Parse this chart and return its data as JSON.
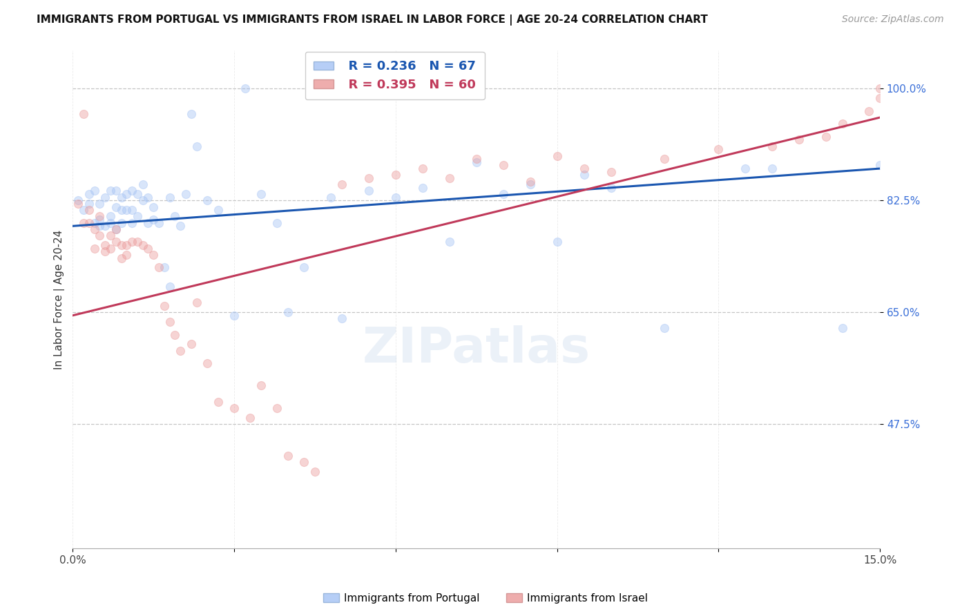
{
  "title": "IMMIGRANTS FROM PORTUGAL VS IMMIGRANTS FROM ISRAEL IN LABOR FORCE | AGE 20-24 CORRELATION CHART",
  "source": "Source: ZipAtlas.com",
  "ylabel": "In Labor Force | Age 20-24",
  "xlim": [
    0.0,
    0.15
  ],
  "ylim": [
    0.28,
    1.06
  ],
  "xticks": [
    0.0,
    0.03,
    0.06,
    0.09,
    0.12,
    0.15
  ],
  "xtick_labels": [
    "0.0%",
    "",
    "",
    "",
    "",
    "15.0%"
  ],
  "yticks": [
    0.475,
    0.65,
    0.825,
    1.0
  ],
  "ytick_labels": [
    "47.5%",
    "65.0%",
    "82.5%",
    "100.0%"
  ],
  "legend_blue_r": "R = 0.236",
  "legend_blue_n": "N = 67",
  "legend_pink_r": "R = 0.395",
  "legend_pink_n": "N = 60",
  "blue_color": "#a4c2f4",
  "pink_color": "#ea9999",
  "blue_line_color": "#1a56b0",
  "pink_line_color": "#c0395a",
  "watermark": "ZIPatlas",
  "blue_line_x0": 0.0,
  "blue_line_y0": 0.785,
  "blue_line_x1": 0.15,
  "blue_line_y1": 0.875,
  "pink_line_x0": 0.0,
  "pink_line_y0": 0.645,
  "pink_line_x1": 0.15,
  "pink_line_y1": 0.955,
  "blue_x": [
    0.001,
    0.002,
    0.003,
    0.003,
    0.004,
    0.004,
    0.005,
    0.005,
    0.005,
    0.006,
    0.006,
    0.007,
    0.007,
    0.007,
    0.008,
    0.008,
    0.008,
    0.009,
    0.009,
    0.009,
    0.01,
    0.01,
    0.011,
    0.011,
    0.011,
    0.012,
    0.012,
    0.013,
    0.013,
    0.014,
    0.014,
    0.015,
    0.015,
    0.016,
    0.017,
    0.018,
    0.018,
    0.019,
    0.02,
    0.021,
    0.022,
    0.023,
    0.025,
    0.027,
    0.03,
    0.032,
    0.035,
    0.038,
    0.04,
    0.043,
    0.048,
    0.05,
    0.055,
    0.06,
    0.065,
    0.07,
    0.075,
    0.08,
    0.085,
    0.09,
    0.095,
    0.1,
    0.11,
    0.125,
    0.13,
    0.143,
    0.15
  ],
  "blue_y": [
    0.825,
    0.81,
    0.82,
    0.835,
    0.79,
    0.84,
    0.785,
    0.82,
    0.795,
    0.83,
    0.785,
    0.8,
    0.84,
    0.79,
    0.815,
    0.84,
    0.78,
    0.83,
    0.81,
    0.79,
    0.835,
    0.81,
    0.84,
    0.81,
    0.79,
    0.835,
    0.8,
    0.825,
    0.85,
    0.79,
    0.83,
    0.815,
    0.795,
    0.79,
    0.72,
    0.69,
    0.83,
    0.8,
    0.785,
    0.835,
    0.96,
    0.91,
    0.825,
    0.81,
    0.645,
    1.0,
    0.835,
    0.79,
    0.65,
    0.72,
    0.83,
    0.64,
    0.84,
    0.83,
    0.845,
    0.76,
    0.885,
    0.835,
    0.85,
    0.76,
    0.865,
    0.845,
    0.625,
    0.875,
    0.875,
    0.625,
    0.88
  ],
  "pink_x": [
    0.001,
    0.002,
    0.002,
    0.003,
    0.003,
    0.004,
    0.004,
    0.005,
    0.005,
    0.006,
    0.006,
    0.007,
    0.007,
    0.008,
    0.008,
    0.009,
    0.009,
    0.01,
    0.01,
    0.011,
    0.012,
    0.013,
    0.014,
    0.015,
    0.016,
    0.017,
    0.018,
    0.019,
    0.02,
    0.022,
    0.023,
    0.025,
    0.027,
    0.03,
    0.033,
    0.035,
    0.038,
    0.04,
    0.043,
    0.045,
    0.05,
    0.055,
    0.06,
    0.065,
    0.07,
    0.075,
    0.08,
    0.085,
    0.09,
    0.095,
    0.1,
    0.11,
    0.12,
    0.13,
    0.135,
    0.14,
    0.143,
    0.148,
    0.15,
    0.15
  ],
  "pink_y": [
    0.82,
    0.96,
    0.79,
    0.79,
    0.81,
    0.75,
    0.78,
    0.77,
    0.8,
    0.755,
    0.745,
    0.77,
    0.75,
    0.76,
    0.78,
    0.735,
    0.755,
    0.755,
    0.74,
    0.76,
    0.76,
    0.755,
    0.75,
    0.74,
    0.72,
    0.66,
    0.635,
    0.615,
    0.59,
    0.6,
    0.665,
    0.57,
    0.51,
    0.5,
    0.485,
    0.535,
    0.5,
    0.425,
    0.415,
    0.4,
    0.85,
    0.86,
    0.865,
    0.875,
    0.86,
    0.89,
    0.88,
    0.855,
    0.895,
    0.875,
    0.87,
    0.89,
    0.905,
    0.91,
    0.92,
    0.925,
    0.945,
    0.965,
    0.985,
    1.0
  ],
  "title_fontsize": 11,
  "axis_label_fontsize": 11,
  "tick_fontsize": 11,
  "legend_fontsize": 13,
  "source_fontsize": 10,
  "watermark_fontsize": 52,
  "marker_size": 75,
  "marker_alpha": 0.42,
  "line_width": 2.2
}
